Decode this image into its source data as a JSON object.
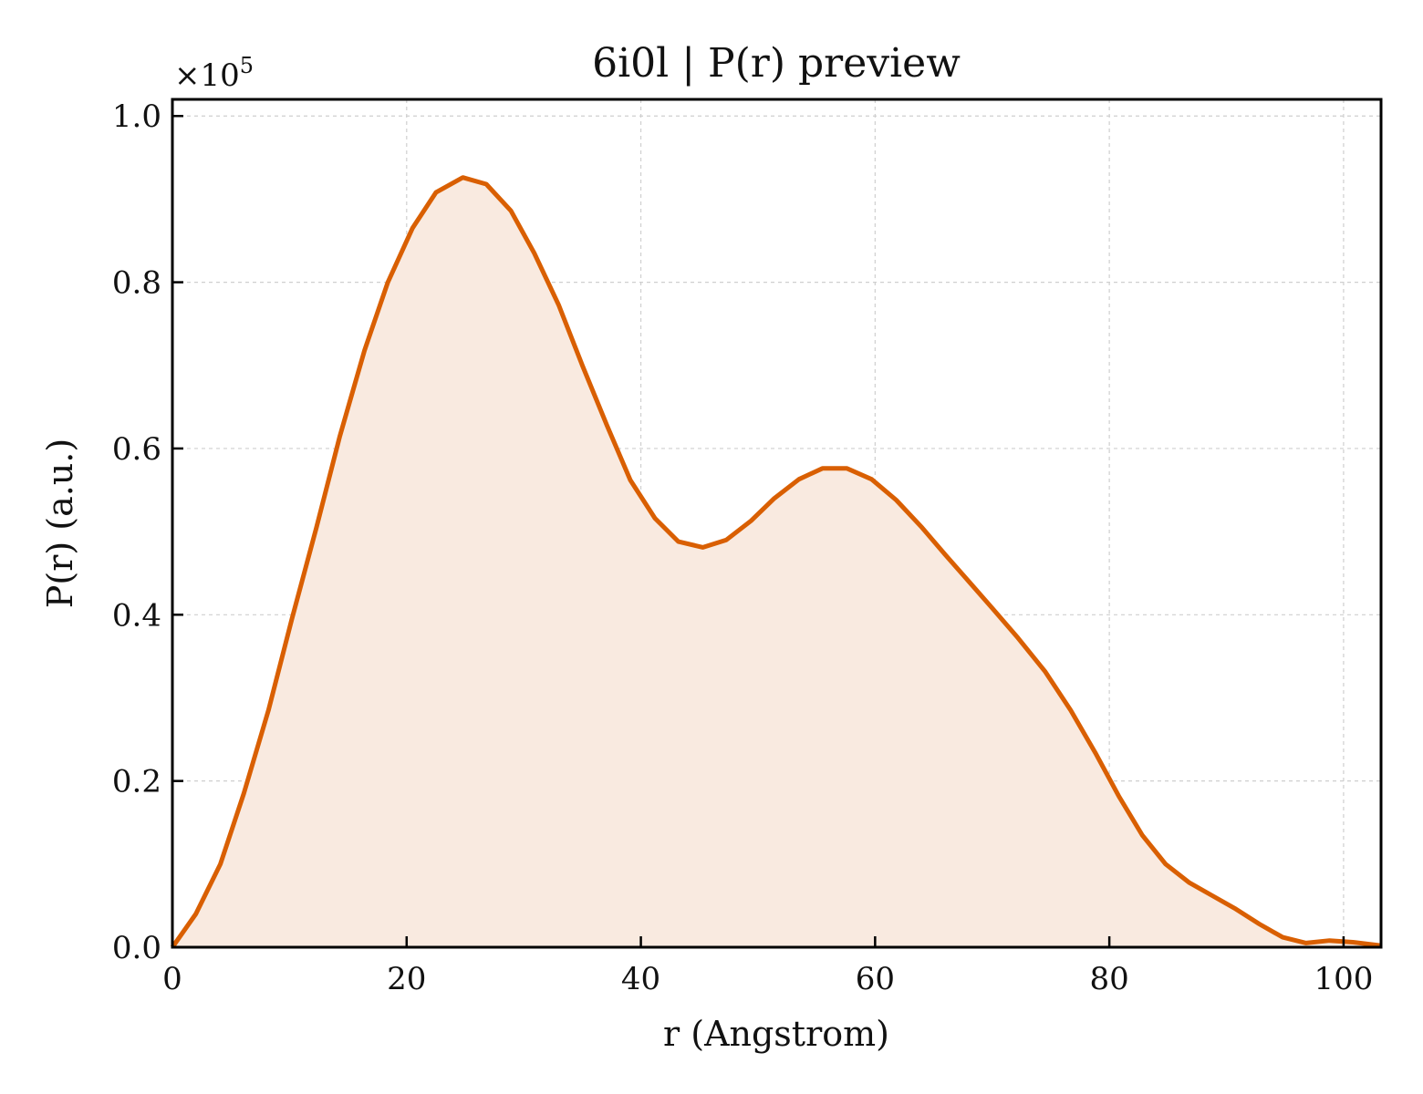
{
  "chart_data": {
    "type": "area",
    "title": "6i0l | P(r) preview",
    "xlabel": "r (Angstrom)",
    "ylabel": "P(r) (a.u.)",
    "y_multiplier_label": "×10",
    "y_multiplier_exponent": "5",
    "xlim": [
      0,
      103.2
    ],
    "ylim": [
      0,
      1.02
    ],
    "xticks": [
      0,
      20,
      40,
      60,
      80,
      100
    ],
    "yticks": [
      0.0,
      0.2,
      0.4,
      0.6,
      0.8,
      1.0
    ],
    "xtick_labels": [
      "0",
      "20",
      "40",
      "60",
      "80",
      "100"
    ],
    "ytick_labels": [
      "0.0",
      "0.2",
      "0.4",
      "0.6",
      "0.8",
      "1.0"
    ],
    "grid": true,
    "line_color": "#D95F02",
    "fill_color": "#F9EAE0",
    "series": [
      {
        "x": [
          0,
          2.0,
          4.1,
          6.1,
          8.2,
          10.2,
          12.3,
          14.3,
          16.4,
          18.4,
          20.5,
          22.5,
          24.8,
          26.8,
          28.9,
          30.9,
          33.0,
          35.0,
          37.1,
          39.1,
          41.2,
          43.2,
          45.3,
          47.3,
          49.4,
          51.4,
          53.5,
          55.5,
          57.6,
          59.7,
          61.8,
          64.0,
          66.0,
          68.0,
          70.0,
          72.2,
          74.5,
          76.7,
          78.8,
          80.8,
          82.8,
          84.8,
          86.8,
          88.8,
          90.8,
          92.8,
          94.8,
          96.8,
          98.8,
          100.8,
          103.2
        ],
        "y": [
          0.0,
          0.04,
          0.1,
          0.185,
          0.285,
          0.395,
          0.505,
          0.615,
          0.718,
          0.8,
          0.865,
          0.908,
          0.926,
          0.918,
          0.886,
          0.835,
          0.772,
          0.7,
          0.628,
          0.562,
          0.516,
          0.488,
          0.481,
          0.49,
          0.513,
          0.54,
          0.563,
          0.576,
          0.576,
          0.563,
          0.538,
          0.505,
          0.472,
          0.44,
          0.408,
          0.372,
          0.332,
          0.285,
          0.234,
          0.182,
          0.135,
          0.1,
          0.078,
          0.062,
          0.046,
          0.028,
          0.012,
          0.005,
          0.008,
          0.006,
          0.002
        ]
      }
    ]
  }
}
